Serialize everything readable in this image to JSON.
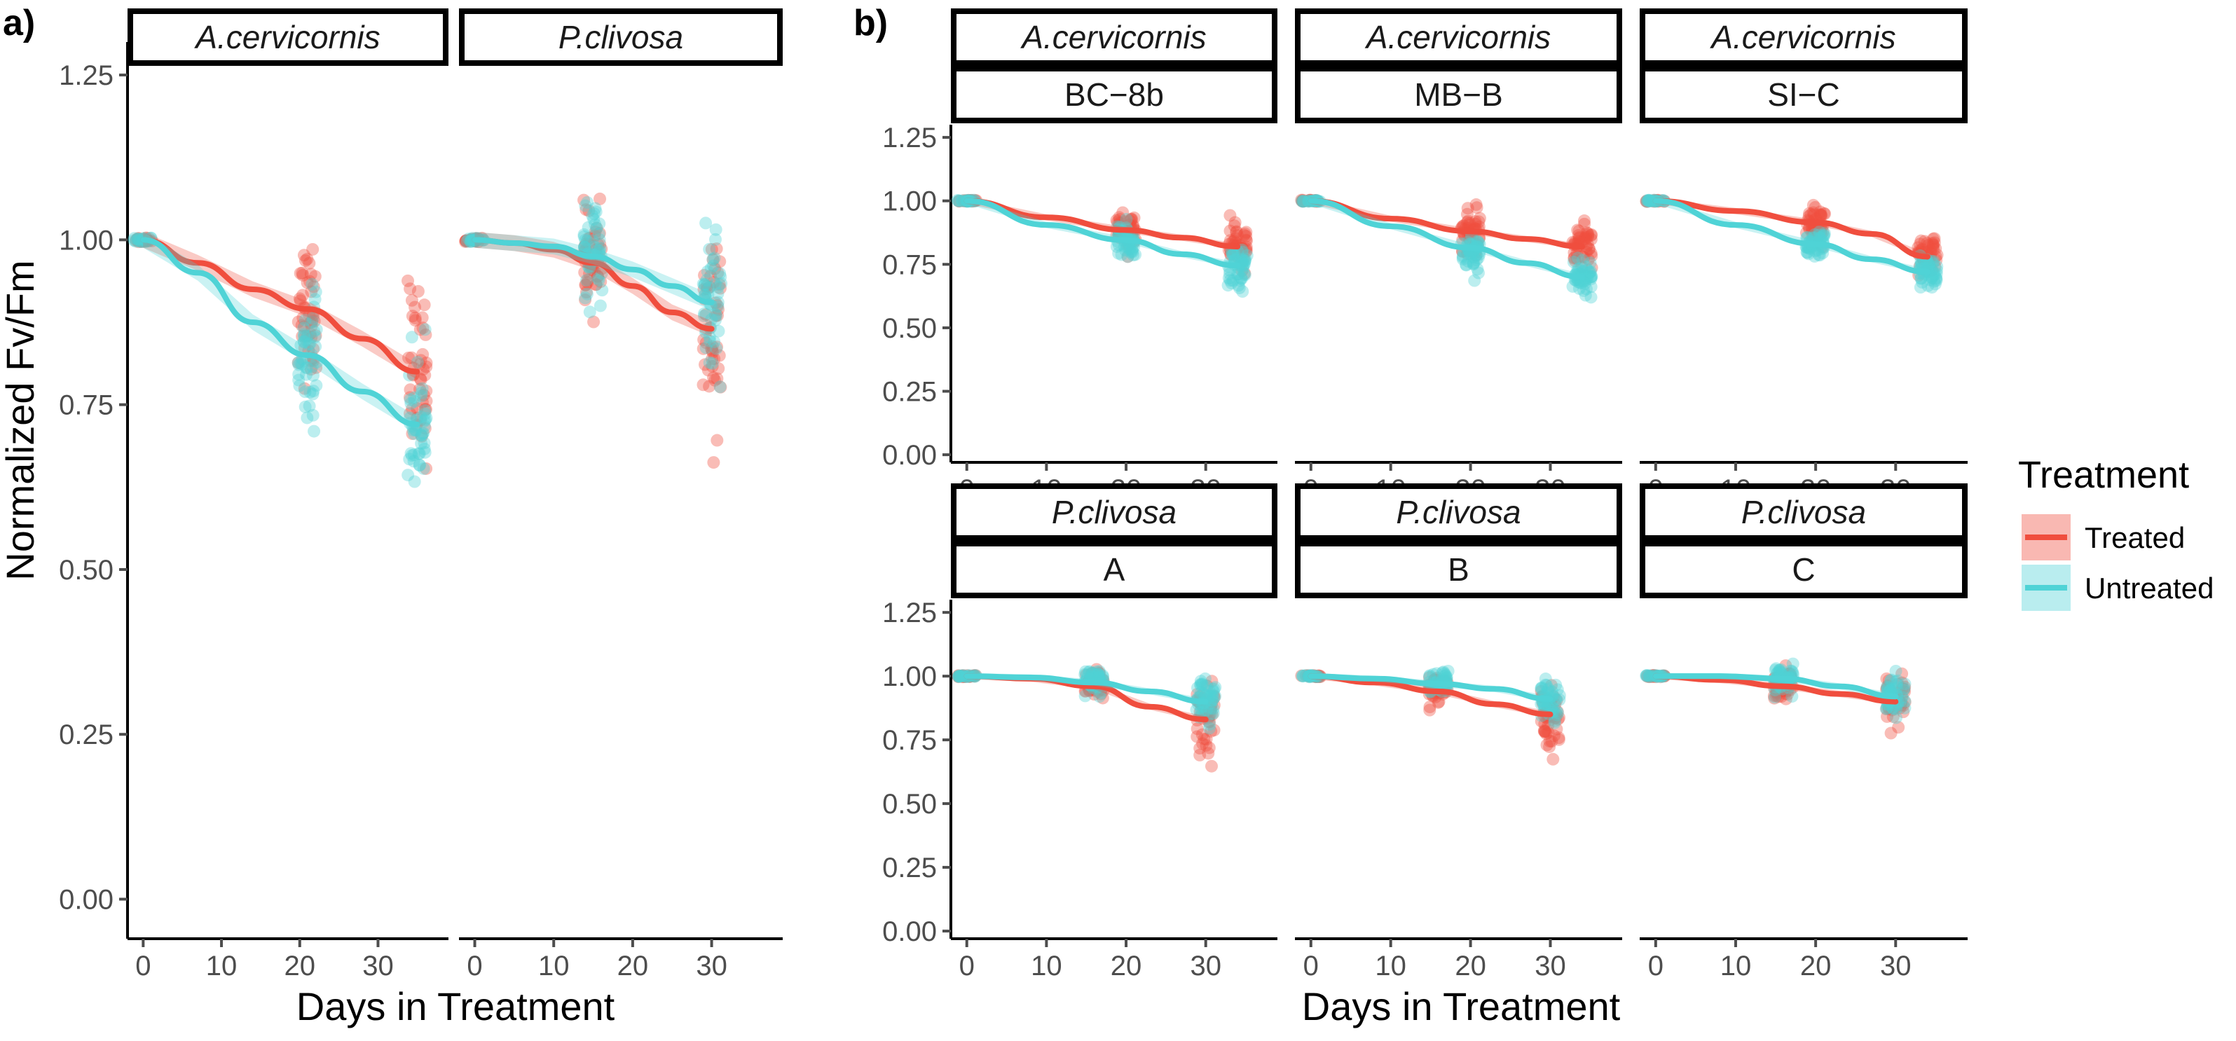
{
  "chart_data": [
    {
      "panel_tag": "a)",
      "type": "scatter",
      "xlabel": "Days in Treatment",
      "ylabel": "Normalized Fv/Fm",
      "xlim": [
        -2,
        39
      ],
      "ylim": [
        -0.06,
        1.3
      ],
      "x_ticks": [
        0,
        10,
        20,
        30
      ],
      "y_ticks": [
        0.0,
        0.25,
        0.5,
        0.75,
        1.0,
        1.25
      ],
      "y_tick_labels": [
        "0.00",
        "0.25",
        "0.50",
        "0.75",
        "1.00",
        "1.25"
      ],
      "grid": false,
      "facets": [
        {
          "strip": [
            "A.cervicornis"
          ],
          "series": [
            {
              "name": "Treated",
              "time_points": [
                0,
                21,
                35
              ],
              "center": [
                1.0,
                0.895,
                0.8
              ],
              "spread": [
                0.004,
                0.05,
                0.065
              ],
              "curve_x": [
                0,
                7,
                14,
                21,
                28,
                35
              ],
              "curve_y": [
                1.0,
                0.965,
                0.925,
                0.895,
                0.85,
                0.8
              ]
            },
            {
              "name": "Untreated",
              "time_points": [
                0,
                21,
                35
              ],
              "center": [
                1.0,
                0.825,
                0.72
              ],
              "spread": [
                0.004,
                0.05,
                0.05
              ],
              "curve_x": [
                0,
                7,
                14,
                21,
                28,
                35
              ],
              "curve_y": [
                1.0,
                0.95,
                0.875,
                0.825,
                0.77,
                0.72
              ]
            }
          ]
        },
        {
          "strip": [
            "P.clivosa"
          ],
          "series": [
            {
              "name": "Treated",
              "time_points": [
                0,
                15,
                30
              ],
              "center": [
                1.0,
                0.965,
                0.865
              ],
              "spread": [
                0.004,
                0.035,
                0.07
              ],
              "curve_x": [
                0,
                5,
                10,
                15,
                20,
                25,
                30
              ],
              "curve_y": [
                1.0,
                0.995,
                0.985,
                0.965,
                0.93,
                0.89,
                0.865
              ]
            },
            {
              "name": "Untreated",
              "time_points": [
                0,
                15,
                30
              ],
              "center": [
                1.0,
                0.975,
                0.905
              ],
              "spread": [
                0.004,
                0.035,
                0.05
              ],
              "curve_x": [
                0,
                5,
                10,
                15,
                20,
                25,
                30
              ],
              "curve_y": [
                1.0,
                0.995,
                0.99,
                0.975,
                0.955,
                0.93,
                0.905
              ]
            }
          ]
        }
      ]
    },
    {
      "panel_tag": "b)",
      "type": "scatter",
      "xlabel": "Days in Treatment",
      "ylabel": "",
      "xlim": [
        -2,
        39
      ],
      "ylim": [
        -0.03,
        1.3
      ],
      "x_ticks": [
        0,
        10,
        20,
        30
      ],
      "y_ticks": [
        0.0,
        0.25,
        0.5,
        0.75,
        1.0,
        1.25
      ],
      "y_tick_labels": [
        "0.00",
        "0.25",
        "0.50",
        "0.75",
        "1.00",
        "1.25"
      ],
      "grid": false,
      "facets": [
        {
          "strip": [
            "A.cervicornis",
            "BC−8b"
          ],
          "series": [
            {
              "name": "Treated",
              "time_points": [
                0,
                20,
                34
              ],
              "center": [
                1.0,
                0.88,
                0.82
              ],
              "spread": [
                0.004,
                0.035,
                0.04
              ],
              "curve_x": [
                0,
                10,
                20,
                27,
                34
              ],
              "curve_y": [
                1.0,
                0.935,
                0.885,
                0.855,
                0.82
              ]
            },
            {
              "name": "Untreated",
              "time_points": [
                0,
                20,
                34
              ],
              "center": [
                1.0,
                0.84,
                0.74
              ],
              "spread": [
                0.004,
                0.035,
                0.04
              ],
              "curve_x": [
                0,
                10,
                20,
                27,
                34
              ],
              "curve_y": [
                1.0,
                0.905,
                0.845,
                0.79,
                0.745
              ]
            }
          ]
        },
        {
          "strip": [
            "A.cervicornis",
            "MB−B"
          ],
          "series": [
            {
              "name": "Treated",
              "time_points": [
                0,
                20,
                34
              ],
              "center": [
                1.0,
                0.88,
                0.82
              ],
              "spread": [
                0.004,
                0.045,
                0.04
              ],
              "curve_x": [
                0,
                10,
                20,
                27,
                34
              ],
              "curve_y": [
                1.0,
                0.93,
                0.88,
                0.85,
                0.82
              ]
            },
            {
              "name": "Untreated",
              "time_points": [
                0,
                20,
                34
              ],
              "center": [
                1.0,
                0.8,
                0.7
              ],
              "spread": [
                0.004,
                0.04,
                0.04
              ],
              "curve_x": [
                0,
                10,
                20,
                27,
                34
              ],
              "curve_y": [
                1.0,
                0.9,
                0.815,
                0.755,
                0.7
              ]
            }
          ]
        },
        {
          "strip": [
            "A.cervicornis",
            "SI−C"
          ],
          "series": [
            {
              "name": "Treated",
              "time_points": [
                0,
                20,
                34
              ],
              "center": [
                1.0,
                0.91,
                0.78
              ],
              "spread": [
                0.004,
                0.035,
                0.04
              ],
              "curve_x": [
                0,
                10,
                20,
                27,
                34
              ],
              "curve_y": [
                1.0,
                0.96,
                0.915,
                0.87,
                0.78
              ]
            },
            {
              "name": "Untreated",
              "time_points": [
                0,
                20,
                34
              ],
              "center": [
                1.0,
                0.83,
                0.72
              ],
              "spread": [
                0.004,
                0.03,
                0.03
              ],
              "curve_x": [
                0,
                10,
                20,
                27,
                34
              ],
              "curve_y": [
                1.0,
                0.905,
                0.83,
                0.77,
                0.72
              ]
            }
          ]
        },
        {
          "strip": [
            "P.clivosa",
            "A"
          ],
          "series": [
            {
              "name": "Treated",
              "time_points": [
                0,
                16,
                30
              ],
              "center": [
                1.0,
                0.97,
                0.83
              ],
              "spread": [
                0.004,
                0.025,
                0.07
              ],
              "curve_x": [
                0,
                8,
                16,
                23,
                30
              ],
              "curve_y": [
                1.0,
                0.99,
                0.96,
                0.88,
                0.83
              ]
            },
            {
              "name": "Untreated",
              "time_points": [
                0,
                16,
                30
              ],
              "center": [
                1.0,
                0.98,
                0.9
              ],
              "spread": [
                0.004,
                0.025,
                0.04
              ],
              "curve_x": [
                0,
                8,
                16,
                23,
                30
              ],
              "curve_y": [
                1.0,
                0.995,
                0.975,
                0.94,
                0.9
              ]
            }
          ]
        },
        {
          "strip": [
            "P.clivosa",
            "B"
          ],
          "series": [
            {
              "name": "Treated",
              "time_points": [
                0,
                16,
                30
              ],
              "center": [
                1.0,
                0.95,
                0.85
              ],
              "spread": [
                0.004,
                0.025,
                0.06
              ],
              "curve_x": [
                0,
                8,
                16,
                23,
                30
              ],
              "curve_y": [
                1.0,
                0.975,
                0.94,
                0.89,
                0.85
              ]
            },
            {
              "name": "Untreated",
              "time_points": [
                0,
                16,
                30
              ],
              "center": [
                1.0,
                0.97,
                0.91
              ],
              "spread": [
                0.004,
                0.025,
                0.04
              ],
              "curve_x": [
                0,
                8,
                16,
                23,
                30
              ],
              "curve_y": [
                1.0,
                0.99,
                0.97,
                0.95,
                0.91
              ]
            }
          ]
        },
        {
          "strip": [
            "P.clivosa",
            "C"
          ],
          "series": [
            {
              "name": "Treated",
              "time_points": [
                0,
                16,
                30
              ],
              "center": [
                1.0,
                0.96,
                0.9
              ],
              "spread": [
                0.004,
                0.03,
                0.05
              ],
              "curve_x": [
                0,
                8,
                16,
                23,
                30
              ],
              "curve_y": [
                1.0,
                0.985,
                0.96,
                0.93,
                0.9
              ]
            },
            {
              "name": "Untreated",
              "time_points": [
                0,
                16,
                30
              ],
              "center": [
                1.0,
                0.99,
                0.92
              ],
              "spread": [
                0.004,
                0.03,
                0.04
              ],
              "curve_x": [
                0,
                8,
                16,
                23,
                30
              ],
              "curve_y": [
                1.0,
                1.0,
                0.99,
                0.96,
                0.92
              ]
            }
          ]
        }
      ]
    }
  ],
  "legend": {
    "title": "Treatment",
    "placement": "right",
    "items": [
      {
        "label": "Treated",
        "color": "#F04E3E"
      },
      {
        "label": "Untreated",
        "color": "#4FD3D6"
      }
    ]
  },
  "colors": {
    "Treated": "#F04E3E",
    "Untreated": "#4FD3D6"
  }
}
